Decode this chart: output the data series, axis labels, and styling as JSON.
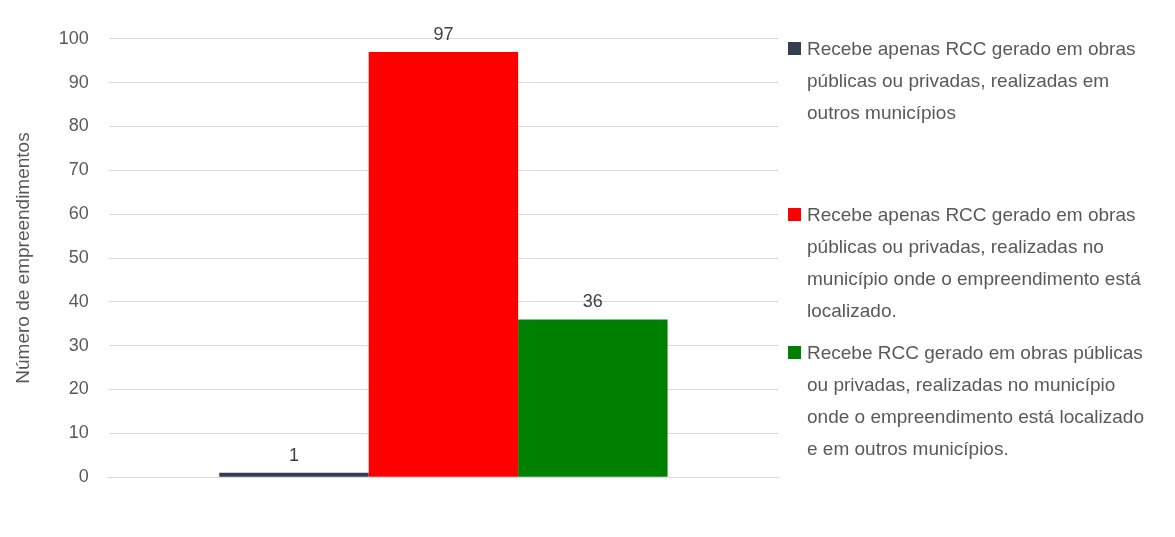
{
  "chart_data": {
    "type": "bar",
    "ylabel": "Número de empreendimentos",
    "categories": [
      null
    ],
    "series": [
      {
        "name": "Recebe apenas RCC gerado em obras públicas ou privadas, realizadas em outros municípios",
        "color": "#333f50",
        "values": [
          1
        ]
      },
      {
        "name": "Recebe apenas RCC gerado em obras públicas ou privadas, realizadas no município onde o empreendimento está localizado.",
        "color": "#ff0000",
        "values": [
          97
        ]
      },
      {
        "name": "Recebe RCC gerado em obras públicas ou privadas, realizadas no município onde o empreendimento está localizado e em outros municípios.",
        "color": "#008000",
        "values": [
          36
        ]
      }
    ],
    "ylim": [
      0,
      100
    ],
    "yticks": [
      0,
      10,
      20,
      30,
      40,
      50,
      60,
      70,
      80,
      90,
      100
    ],
    "grid": "y",
    "legend": "right",
    "data_labels": true
  }
}
